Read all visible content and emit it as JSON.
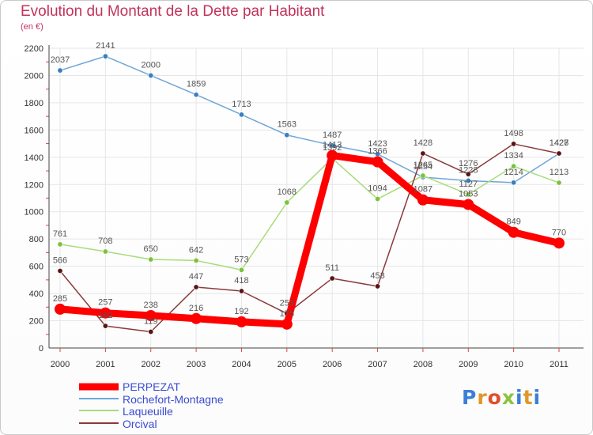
{
  "header": {
    "title": "Evolution du Montant de la Dette par Habitant",
    "unit": "(en €)"
  },
  "logo": {
    "text": "Proxiti",
    "letter_colors": [
      "#3a7fd6",
      "#e0972a",
      "#e04f2a",
      "#8ac43f",
      "#3a7fd6",
      "#e0972a",
      "#3a7fd6"
    ]
  },
  "chart_data": {
    "type": "line",
    "title": "Evolution du Montant de la Dette par Habitant",
    "subtitle": "(en €)",
    "xlabel": "",
    "ylabel": "",
    "x": [
      "2000",
      "2001",
      "2002",
      "2003",
      "2004",
      "2005",
      "2006",
      "2007",
      "2008",
      "2009",
      "2010",
      "2011"
    ],
    "ylim": [
      0,
      2200
    ],
    "yticks": [
      0,
      200,
      400,
      600,
      800,
      1000,
      1200,
      1400,
      1600,
      1800,
      2000,
      2200
    ],
    "grid": true,
    "legend_position": "bottom-left",
    "series": [
      {
        "name": "PERPEZAT",
        "color": "#ff0000",
        "values": [
          285,
          257,
          238,
          216,
          192,
          175,
          1413,
          1366,
          1087,
          1053,
          849,
          770
        ]
      },
      {
        "name": "Rochefort-Montagne",
        "color": "#6ea6d8",
        "marker": "#3a7fc0",
        "values": [
          2037,
          2141,
          2000,
          1859,
          1713,
          1563,
          1487,
          1423,
          1254,
          1228,
          1214,
          1427
        ]
      },
      {
        "name": "Laqueuille",
        "color": "#a8dc7a",
        "marker": "#7cc23d",
        "values": [
          761,
          708,
          650,
          642,
          573,
          1068,
          1392,
          1094,
          1265,
          1127,
          1334,
          1213
        ]
      },
      {
        "name": "Orcival",
        "color": "#8a3a3a",
        "marker": "#5a1414",
        "values": [
          566,
          162,
          119,
          447,
          418,
          253,
          511,
          453,
          1428,
          1276,
          1498,
          1428
        ]
      }
    ]
  }
}
